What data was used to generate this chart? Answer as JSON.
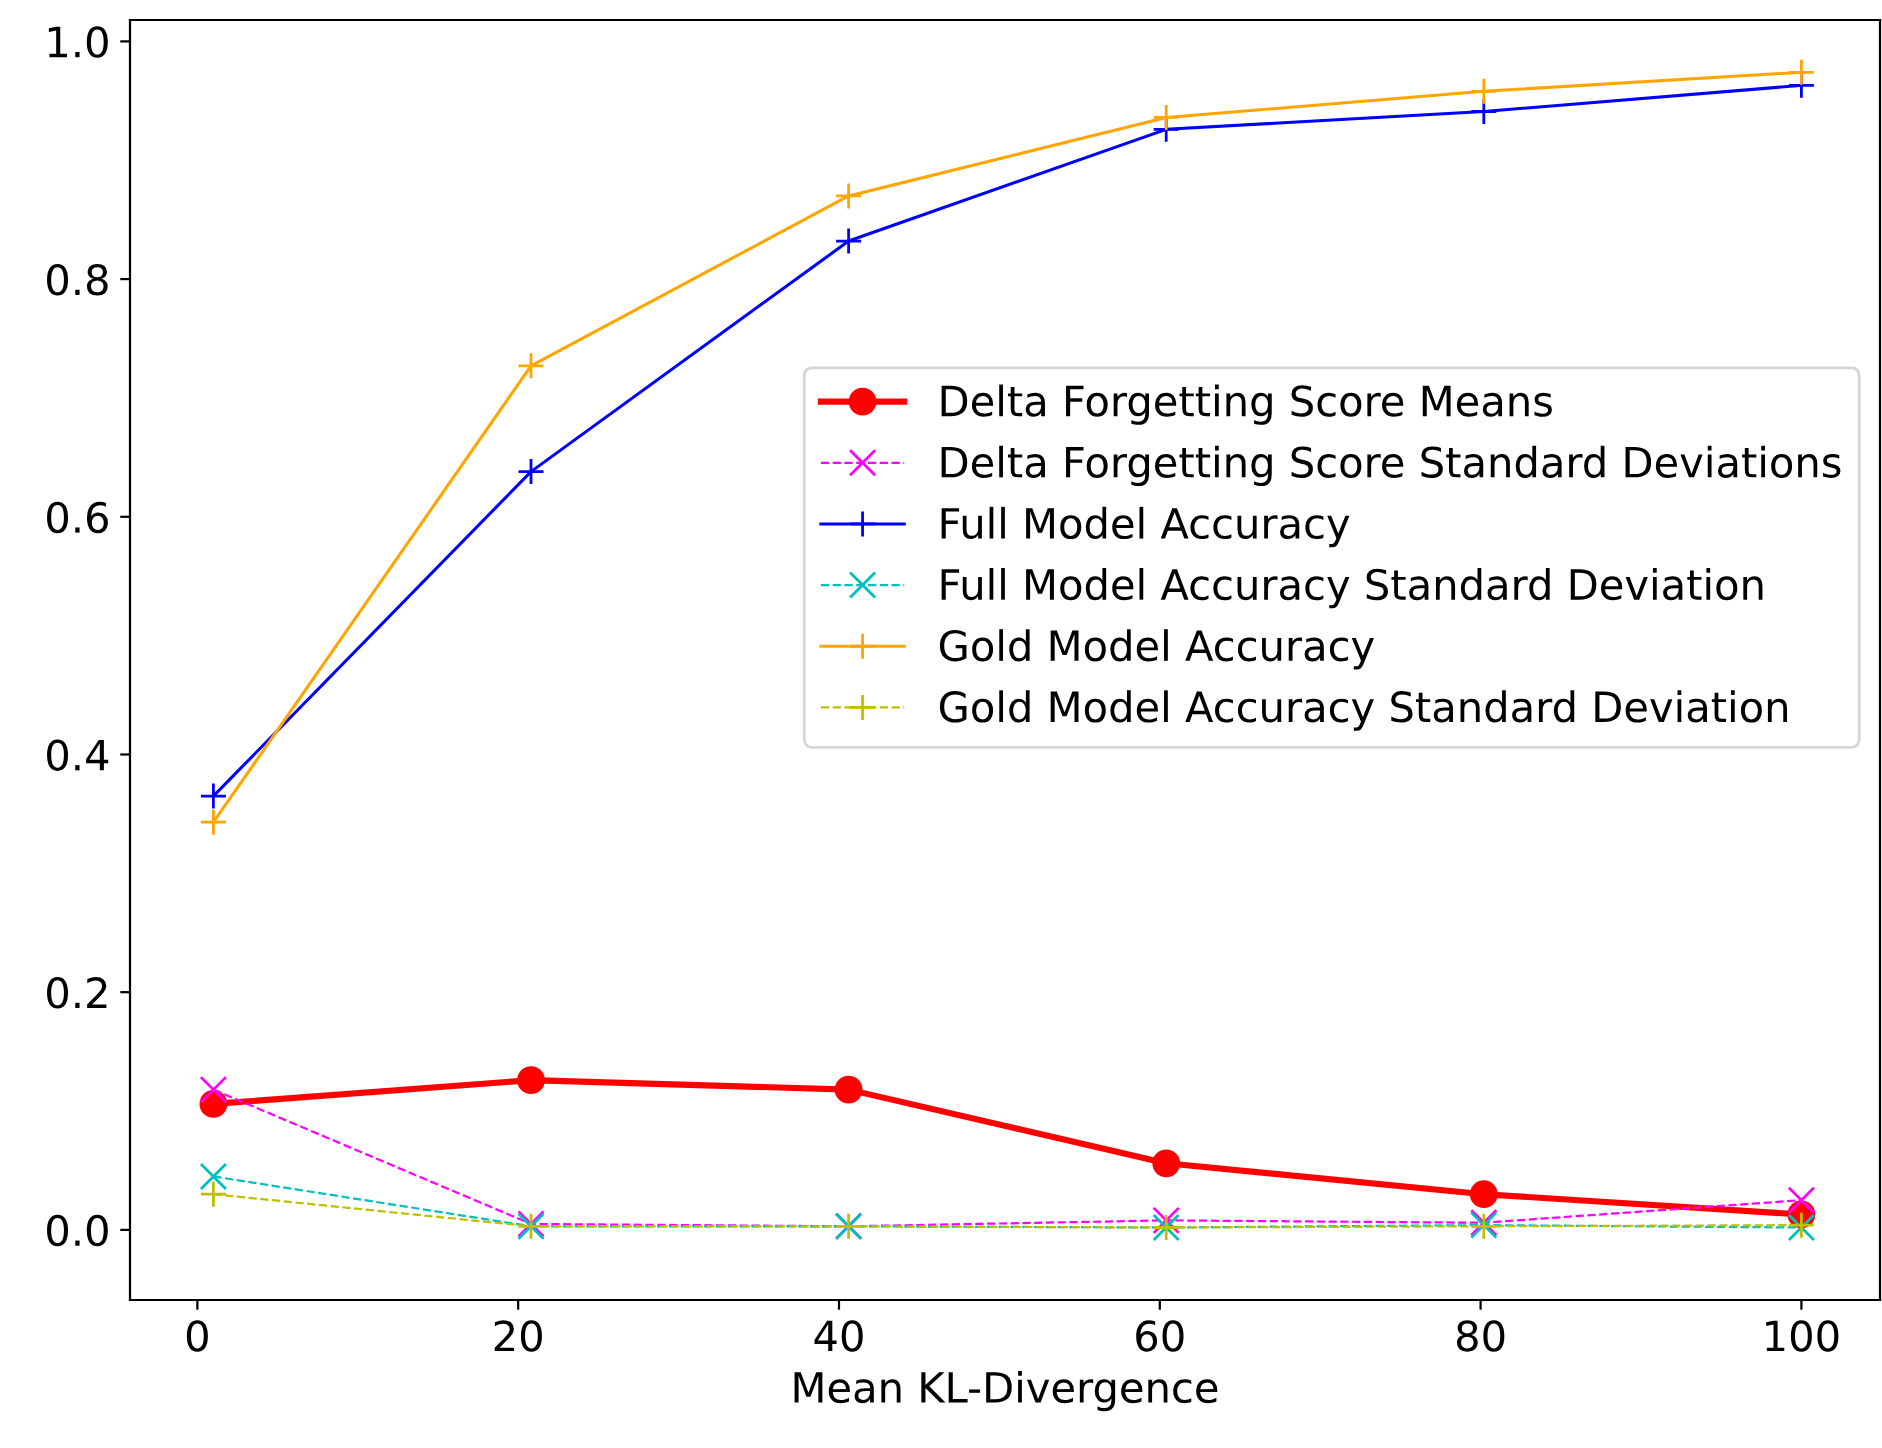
{
  "chart_data": {
    "type": "line",
    "xlabel": "Mean KL-Divergence",
    "x": [
      1,
      20.8,
      40.6,
      60.4,
      80.2,
      100
    ],
    "xlim": [
      -4.2,
      104.9
    ],
    "ylim": [
      -0.059,
      1.018
    ],
    "xticks": [
      0,
      20,
      40,
      60,
      80,
      100
    ],
    "yticks": [
      {
        "value": 0,
        "label": "0.0"
      },
      {
        "value": 0.2,
        "label": "0.2"
      },
      {
        "value": 0.4,
        "label": "0.4"
      },
      {
        "value": 0.6,
        "label": "0.6"
      },
      {
        "value": 0.8,
        "label": "0.8"
      },
      {
        "value": 1.0,
        "label": "1.0"
      }
    ],
    "grid": false,
    "legend": "right",
    "series": [
      {
        "name": "Delta Forgetting Score Means",
        "color": "#ff0000",
        "marker": "circle",
        "line_style": "solid",
        "values": [
          0.106,
          0.126,
          0.118,
          0.056,
          0.03,
          0.013
        ]
      },
      {
        "name": "Delta Forgetting Score Standard Deviations",
        "color": "#ff00ff",
        "marker": "cross",
        "line_style": "dashed",
        "values": [
          0.118,
          0.005,
          0.003,
          0.008,
          0.006,
          0.025
        ]
      },
      {
        "name": "Full Model Accuracy",
        "color": "#0000ff",
        "marker": "plus",
        "line_style": "solid",
        "values": [
          0.365,
          0.638,
          0.832,
          0.926,
          0.941,
          0.963
        ]
      },
      {
        "name": "Full Model Accuracy Standard Deviation",
        "color": "#00bfbf",
        "marker": "cross",
        "line_style": "dashed",
        "values": [
          0.045,
          0.003,
          0.003,
          0.002,
          0.004,
          0.002
        ]
      },
      {
        "name": "Gold Model Accuracy",
        "color": "#ffa500",
        "marker": "plus",
        "line_style": "solid",
        "values": [
          0.343,
          0.727,
          0.87,
          0.936,
          0.958,
          0.974
        ]
      },
      {
        "name": "Gold Model Accuracy Standard Deviation",
        "color": "#bfbf00",
        "marker": "plus",
        "line_style": "dashed",
        "values": [
          0.03,
          0.003,
          0.003,
          0.002,
          0.003,
          0.004
        ]
      }
    ]
  }
}
